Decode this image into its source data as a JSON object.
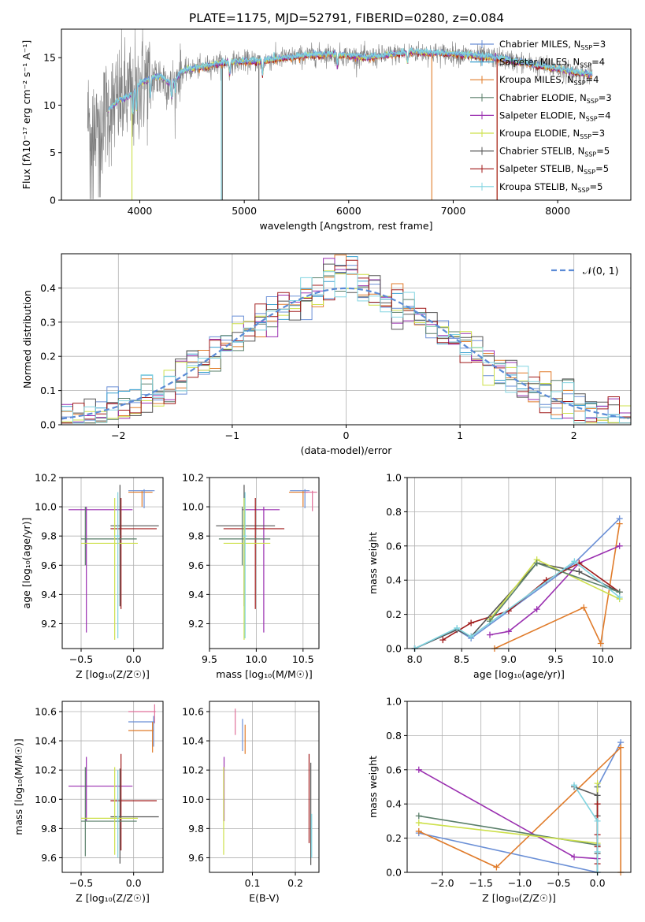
{
  "figure_title": "PLATE=1175, MJD=52791, FIBERID=0280, z=0.084",
  "colors": {
    "chabrier_miles": "#6a8fd6",
    "salpeter_miles": "#3aa0d0",
    "kroupa_miles": "#e07b2a",
    "chabrier_elodie": "#5a7f6a",
    "salpeter_elodie": "#9a2fb0",
    "kroupa_elodie": "#cde04a",
    "chabrier_stelib": "#555555",
    "salpeter_stelib": "#a01a1a",
    "kroupa_stelib": "#80d4e0",
    "pink": "#e0709a",
    "data_grey": "#808080",
    "normal_curve": "#5b8bd6",
    "grid": "#b0b0b0"
  },
  "chart_data": [
    {
      "id": "spectrum",
      "type": "line",
      "title": "PLATE=1175, MJD=52791, FIBERID=0280, z=0.084",
      "xlabel": "wavelength [Angstrom, rest frame]",
      "ylabel": "Flux [fλ10⁻¹⁷ erg cm⁻² s⁻¹ A⁻¹]",
      "xlim": [
        3250,
        8700
      ],
      "ylim": [
        0,
        18
      ],
      "xticks": [
        4000,
        5000,
        6000,
        7000,
        8000
      ],
      "yticks": [
        0,
        5,
        10,
        15
      ],
      "grid": false,
      "legend_position": "right",
      "legend": [
        {
          "label": "Chabrier MILES, N",
          "sub": "SSP",
          "suffix": "=3",
          "color_key": "chabrier_miles"
        },
        {
          "label": "Salpeter MILES, N",
          "sub": "SSP",
          "suffix": "=4",
          "color_key": "salpeter_miles"
        },
        {
          "label": "Kroupa MILES, N",
          "sub": "SSP",
          "suffix": "=4",
          "color_key": "kroupa_miles"
        },
        {
          "label": "Chabrier ELODIE, N",
          "sub": "SSP",
          "suffix": "=3",
          "color_key": "chabrier_elodie"
        },
        {
          "label": "Salpeter ELODIE, N",
          "sub": "SSP",
          "suffix": "=4",
          "color_key": "salpeter_elodie"
        },
        {
          "label": "Kroupa ELODIE, N",
          "sub": "SSP",
          "suffix": "=3",
          "color_key": "kroupa_elodie"
        },
        {
          "label": "Chabrier STELIB, N",
          "sub": "SSP",
          "suffix": "=5",
          "color_key": "chabrier_stelib"
        },
        {
          "label": "Salpeter STELIB, N",
          "sub": "SSP",
          "suffix": "=5",
          "color_key": "salpeter_stelib"
        },
        {
          "label": "Kroupa STELIB, N",
          "sub": "SSP",
          "suffix": "=5",
          "color_key": "kroupa_stelib"
        }
      ],
      "continuum": {
        "x": [
          3500,
          3600,
          3700,
          3800,
          3900,
          4000,
          4100,
          4200,
          4300,
          4400,
          4500,
          4600,
          4800,
          5000,
          5200,
          5400,
          5600,
          5800,
          6000,
          6200,
          6400,
          6600,
          6800,
          7000,
          7200,
          7400,
          7600,
          7800,
          8000,
          8200,
          8300
        ],
        "y": [
          8.5,
          8.2,
          9.5,
          10.5,
          11.0,
          12.2,
          12.8,
          13.0,
          12.2,
          13.5,
          13.8,
          14.0,
          14.5,
          14.6,
          14.7,
          15.0,
          15.2,
          15.4,
          15.2,
          15.0,
          15.3,
          15.6,
          15.5,
          15.4,
          15.2,
          15.0,
          14.6,
          14.2,
          13.8,
          13.4,
          13.2
        ]
      }
    },
    {
      "id": "residuals",
      "type": "histogram",
      "xlabel": "(data-model)/error",
      "ylabel": "Normed distribution",
      "xlim": [
        -2.5,
        2.5
      ],
      "ylim": [
        0,
        0.5
      ],
      "xticks": [
        -2,
        -1,
        0,
        1,
        2
      ],
      "xtick_labels": [
        "−2",
        "−1",
        "0",
        "1",
        "2"
      ],
      "yticks": [
        0.0,
        0.1,
        0.2,
        0.3,
        0.4
      ],
      "yticklabels": [
        "0.0",
        "0.1",
        "0.2",
        "0.3",
        "0.4"
      ],
      "grid": true,
      "legend": [
        {
          "label": "𝒩(0, 1)",
          "color_key": "normal_curve",
          "style": "dashed"
        }
      ],
      "legend_position": "top-right",
      "bin_width": 0.1,
      "series_color_keys": [
        "chabrier_miles",
        "salpeter_miles",
        "kroupa_miles",
        "chabrier_elodie",
        "salpeter_elodie",
        "kroupa_elodie",
        "chabrier_stelib",
        "salpeter_stelib",
        "kroupa_stelib"
      ]
    },
    {
      "id": "z_age",
      "type": "errorbar",
      "xlabel": "Z [log₁₀(Z/Z☉)]",
      "ylabel": "age  [log₁₀(age/yr)]",
      "xlim": [
        -0.68,
        0.28
      ],
      "ylim": [
        9.03,
        10.2
      ],
      "xticks": [
        -0.5,
        0.0
      ],
      "xtick_labels": [
        "−0.5",
        "0.0"
      ],
      "yticks": [
        9.2,
        9.4,
        9.6,
        9.8,
        10.0,
        10.2
      ],
      "grid": true,
      "points": [
        {
          "c": "kroupa_miles",
          "x": 0.08,
          "xl": -0.05,
          "xh": 0.18,
          "y": 10.1,
          "yl": 10.0,
          "yh": 10.11
        },
        {
          "c": "chabrier_miles",
          "x": 0.1,
          "xl": -0.05,
          "xh": 0.2,
          "y": 10.11,
          "yl": 9.99,
          "yh": 10.12
        },
        {
          "c": "salpeter_elodie",
          "x": -0.45,
          "xl": -0.62,
          "xh": -0.01,
          "y": 9.98,
          "yl": 9.14,
          "yh": 10.0
        },
        {
          "c": "chabrier_stelib",
          "x": -0.13,
          "xl": -0.22,
          "xh": 0.24,
          "y": 9.87,
          "yl": 9.32,
          "yh": 10.15
        },
        {
          "c": "salpeter_stelib",
          "x": -0.12,
          "xl": -0.22,
          "xh": 0.22,
          "y": 9.85,
          "yl": 9.3,
          "yh": 10.06
        },
        {
          "c": "chabrier_elodie",
          "x": -0.46,
          "xl": -0.5,
          "xh": 0.03,
          "y": 9.78,
          "yl": 9.6,
          "yh": 10.0
        },
        {
          "c": "kroupa_elodie",
          "x": -0.18,
          "xl": -0.5,
          "xh": 0.04,
          "y": 9.75,
          "yl": 9.09,
          "yh": 10.06
        },
        {
          "c": "kroupa_stelib",
          "x": -0.15,
          "xl": -0.18,
          "xh": -0.13,
          "y": 9.8,
          "yl": 9.1,
          "yh": 10.1
        }
      ]
    },
    {
      "id": "mass_age",
      "type": "errorbar",
      "xlabel": "mass [log₁₀(M/M☉)]",
      "ylabel": "",
      "xlim": [
        9.5,
        10.67
      ],
      "ylim": [
        9.03,
        10.2
      ],
      "xticks": [
        9.5,
        10.0,
        10.5
      ],
      "yticks": [
        9.2,
        9.4,
        9.6,
        9.8,
        10.0,
        10.2
      ],
      "grid": true,
      "points": [
        {
          "c": "kroupa_miles",
          "x": 10.5,
          "xl": 10.35,
          "xh": 10.55,
          "y": 10.1,
          "yl": 10.0,
          "yh": 10.11
        },
        {
          "c": "chabrier_miles",
          "x": 10.52,
          "xl": 10.36,
          "xh": 10.57,
          "y": 10.11,
          "yl": 9.99,
          "yh": 10.12
        },
        {
          "c": "pink",
          "x": 10.6,
          "xl": 10.52,
          "xh": 10.65,
          "y": 10.1,
          "yl": 9.97,
          "yh": 10.11
        },
        {
          "c": "salpeter_elodie",
          "x": 10.08,
          "xl": 9.85,
          "xh": 10.25,
          "y": 9.98,
          "yl": 9.14,
          "yh": 10.0
        },
        {
          "c": "chabrier_stelib",
          "x": 9.87,
          "xl": 9.57,
          "xh": 10.2,
          "y": 9.87,
          "yl": 9.32,
          "yh": 10.15
        },
        {
          "c": "salpeter_stelib",
          "x": 9.99,
          "xl": 9.65,
          "xh": 10.3,
          "y": 9.85,
          "yl": 9.3,
          "yh": 10.06
        },
        {
          "c": "chabrier_elodie",
          "x": 9.85,
          "xl": 9.6,
          "xh": 10.15,
          "y": 9.78,
          "yl": 9.6,
          "yh": 10.0
        },
        {
          "c": "kroupa_elodie",
          "x": 9.87,
          "xl": 9.65,
          "xh": 10.15,
          "y": 9.75,
          "yl": 9.09,
          "yh": 10.06
        },
        {
          "c": "kroupa_stelib",
          "x": 9.88,
          "xl": 9.86,
          "xh": 9.9,
          "y": 9.8,
          "yl": 9.1,
          "yh": 10.1
        }
      ]
    },
    {
      "id": "weight_age",
      "type": "line",
      "xlabel": "age  [log₁₀(age/yr)]",
      "ylabel": "mass weight",
      "xlim": [
        7.92,
        10.3
      ],
      "ylim": [
        0,
        1.0
      ],
      "xticks": [
        8.0,
        8.5,
        9.0,
        9.5,
        10.0
      ],
      "yticks": [
        0.0,
        0.2,
        0.4,
        0.6,
        0.8,
        1.0
      ],
      "grid": true,
      "series": [
        {
          "c": "kroupa_miles",
          "x": [
            8.85,
            9.8,
            9.98,
            10.18
          ],
          "y": [
            0.0,
            0.24,
            0.03,
            0.73
          ]
        },
        {
          "c": "chabrier_miles",
          "x": [
            8.0,
            8.45,
            8.6,
            9.7,
            10.18
          ],
          "y": [
            0.0,
            0.11,
            0.06,
            0.5,
            0.76
          ]
        },
        {
          "c": "salpeter_elodie",
          "x": [
            8.8,
            9.0,
            9.3,
            9.75,
            10.18
          ],
          "y": [
            0.08,
            0.1,
            0.23,
            0.5,
            0.6
          ]
        },
        {
          "c": "salpeter_stelib",
          "x": [
            8.3,
            8.6,
            9.0,
            9.4,
            9.75,
            10.18
          ],
          "y": [
            0.05,
            0.15,
            0.22,
            0.4,
            0.5,
            0.33
          ]
        },
        {
          "c": "chabrier_stelib",
          "x": [
            8.0,
            8.45,
            8.6,
            9.3,
            9.75,
            10.18
          ],
          "y": [
            0.0,
            0.11,
            0.07,
            0.5,
            0.45,
            0.33
          ]
        },
        {
          "c": "kroupa_elodie",
          "x": [
            8.8,
            9.3,
            10.18
          ],
          "y": [
            0.17,
            0.52,
            0.29
          ]
        },
        {
          "c": "chabrier_elodie",
          "x": [
            8.8,
            9.3,
            10.18
          ],
          "y": [
            0.16,
            0.5,
            0.33
          ]
        },
        {
          "c": "kroupa_stelib",
          "x": [
            8.0,
            8.45,
            8.6,
            9.7,
            10.18
          ],
          "y": [
            0.0,
            0.12,
            0.07,
            0.51,
            0.3
          ]
        }
      ]
    },
    {
      "id": "z_mass",
      "type": "errorbar",
      "xlabel": "Z [log₁₀(Z/Z☉)]",
      "ylabel": "mass [log₁₀(M/M☉)]",
      "xlim": [
        -0.68,
        0.28
      ],
      "ylim": [
        9.5,
        10.67
      ],
      "xticks": [
        -0.5,
        0.0
      ],
      "xtick_labels": [
        "−0.5",
        "0.0"
      ],
      "yticks": [
        9.6,
        9.8,
        10.0,
        10.2,
        10.4,
        10.6
      ],
      "grid": true,
      "points": [
        {
          "c": "pink",
          "x": 0.2,
          "xl": -0.05,
          "xh": 0.21,
          "y": 10.6,
          "yl": 10.52,
          "yh": 10.65
        },
        {
          "c": "chabrier_miles",
          "x": 0.19,
          "xl": -0.05,
          "xh": 0.2,
          "y": 10.53,
          "yl": 10.36,
          "yh": 10.57
        },
        {
          "c": "kroupa_miles",
          "x": 0.18,
          "xl": -0.05,
          "xh": 0.19,
          "y": 10.47,
          "yl": 10.32,
          "yh": 10.53
        },
        {
          "c": "salpeter_elodie",
          "x": -0.45,
          "xl": -0.62,
          "xh": -0.01,
          "y": 10.09,
          "yl": 9.85,
          "yh": 10.29
        },
        {
          "c": "salpeter_stelib",
          "x": -0.12,
          "xl": -0.22,
          "xh": 0.22,
          "y": 9.99,
          "yl": 9.65,
          "yh": 10.31
        },
        {
          "c": "chabrier_stelib",
          "x": -0.13,
          "xl": -0.22,
          "xh": 0.24,
          "y": 9.88,
          "yl": 9.56,
          "yh": 10.21
        },
        {
          "c": "chabrier_elodie",
          "x": -0.46,
          "xl": -0.5,
          "xh": 0.03,
          "y": 9.85,
          "yl": 9.61,
          "yh": 10.22
        },
        {
          "c": "kroupa_elodie",
          "x": -0.18,
          "xl": -0.5,
          "xh": 0.04,
          "y": 9.87,
          "yl": 9.62,
          "yh": 10.22
        },
        {
          "c": "kroupa_stelib",
          "x": -0.15,
          "xl": -0.16,
          "xh": -0.14,
          "y": 9.88,
          "yl": 9.6,
          "yh": 10.2
        }
      ]
    },
    {
      "id": "ebv_mass",
      "type": "errorbar",
      "xlabel": "E(B-V)",
      "ylabel": "",
      "xlim": [
        0.0,
        0.255
      ],
      "ylim": [
        9.5,
        10.67
      ],
      "xticks": [
        0.1,
        0.2
      ],
      "yticks": [
        9.6,
        9.8,
        10.0,
        10.2,
        10.4,
        10.6
      ],
      "grid": true,
      "points": [
        {
          "c": "pink",
          "x": 0.06,
          "y": 10.53,
          "yl": 10.44,
          "yh": 10.62
        },
        {
          "c": "chabrier_miles",
          "x": 0.077,
          "y": 10.44,
          "yl": 10.33,
          "yh": 10.55
        },
        {
          "c": "kroupa_miles",
          "x": 0.083,
          "y": 10.41,
          "yl": 10.31,
          "yh": 10.51
        },
        {
          "c": "salpeter_elodie",
          "x": 0.034,
          "y": 10.09,
          "yl": 9.85,
          "yh": 10.29
        },
        {
          "c": "kroupa_elodie",
          "x": 0.033,
          "y": 9.93,
          "yl": 9.62,
          "yh": 10.22
        },
        {
          "c": "salpeter_stelib",
          "x": 0.232,
          "y": 9.99,
          "yl": 9.7,
          "yh": 10.31
        },
        {
          "c": "chabrier_stelib",
          "x": 0.236,
          "y": 9.9,
          "yl": 9.55,
          "yh": 10.25
        },
        {
          "c": "kroupa_stelib",
          "x": 0.238,
          "y": 9.75,
          "yl": 9.6,
          "yh": 9.9
        }
      ]
    },
    {
      "id": "weight_z",
      "type": "line",
      "xlabel": "Z [log₁₀(Z/Z☉)]",
      "ylabel": "mass weight",
      "xlim": [
        -2.45,
        0.43
      ],
      "ylim": [
        0,
        1.0
      ],
      "xticks": [
        -2.0,
        -1.5,
        -1.0,
        -0.5,
        0.0
      ],
      "xtick_labels": [
        "−2.0",
        "−1.5",
        "−1.0",
        "−0.5",
        "0.0"
      ],
      "yticks": [
        0.0,
        0.2,
        0.4,
        0.6,
        0.8,
        1.0
      ],
      "grid": true,
      "series": [
        {
          "c": "chabrier_miles",
          "x": [
            -2.3,
            0.0,
            0.0,
            0.3
          ],
          "y": [
            0.23,
            0.0,
            0.5,
            0.76
          ]
        },
        {
          "c": "kroupa_miles",
          "x": [
            -2.3,
            -1.3,
            0.3,
            0.3
          ],
          "y": [
            0.24,
            0.03,
            0.73,
            0.0
          ]
        },
        {
          "c": "salpeter_elodie",
          "x": [
            -2.3,
            -0.3,
            0.0,
            0.0
          ],
          "y": [
            0.6,
            0.09,
            0.08,
            0.5
          ]
        },
        {
          "c": "chabrier_elodie",
          "x": [
            -2.3,
            0.0,
            0.0
          ],
          "y": [
            0.33,
            0.16,
            0.5
          ]
        },
        {
          "c": "kroupa_elodie",
          "x": [
            -2.3,
            0.0,
            0.0
          ],
          "y": [
            0.29,
            0.17,
            0.52
          ]
        },
        {
          "c": "chabrier_stelib",
          "x": [
            -0.3,
            0.0,
            0.0,
            0.0,
            0.0
          ],
          "y": [
            0.5,
            0.45,
            0.33,
            0.11,
            0.0
          ]
        },
        {
          "c": "salpeter_stelib",
          "x": [
            0.0,
            0.0,
            0.0,
            0.0
          ],
          "y": [
            0.05,
            0.15,
            0.22,
            0.4
          ]
        },
        {
          "c": "kroupa_stelib",
          "x": [
            -0.3,
            0.0,
            0.0,
            0.0
          ],
          "y": [
            0.51,
            0.3,
            0.12,
            0.0
          ]
        }
      ]
    }
  ]
}
